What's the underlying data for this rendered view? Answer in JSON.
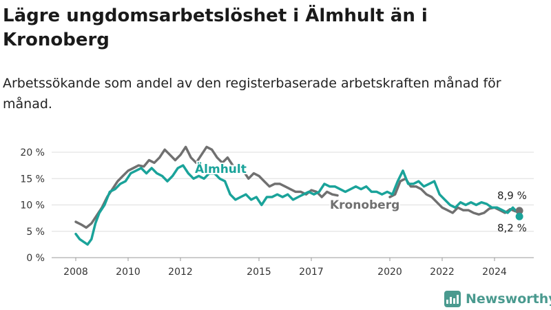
{
  "title": "Lägre ungdomsarbetslöshet i Älmhult än i Kronoberg",
  "subtitle": "Arbetssökande som andel av den registerbaserade arbetskraften månad för månad.",
  "brand": {
    "name": "Newsworthy",
    "icon": "newsworthy-logo-icon",
    "color": "#4a9a8f"
  },
  "chart_data": {
    "type": "line",
    "xlim": [
      2008,
      2025
    ],
    "ylim": [
      0,
      20
    ],
    "x_ticks": [
      {
        "value": 2008,
        "label": "2008"
      },
      {
        "value": 2010,
        "label": "2010"
      },
      {
        "value": 2012,
        "label": "2012"
      },
      {
        "value": 2015,
        "label": "2015"
      },
      {
        "value": 2017,
        "label": "2017"
      },
      {
        "value": 2020,
        "label": "2020"
      },
      {
        "value": 2022,
        "label": "2022"
      },
      {
        "value": 2024,
        "label": "2024"
      }
    ],
    "y_ticks": [
      {
        "value": 0,
        "label": "0 %"
      },
      {
        "value": 5,
        "label": "5 %"
      },
      {
        "value": 10,
        "label": "10 %"
      },
      {
        "value": 15,
        "label": "15 %"
      },
      {
        "value": 20,
        "label": "20 %"
      }
    ],
    "grid": true,
    "series": [
      {
        "name": "Kronoberg",
        "color": "#707070",
        "end_label": "8,9 %",
        "points": [
          [
            2008.0,
            6.8
          ],
          [
            2008.2,
            6.3
          ],
          [
            2008.4,
            5.7
          ],
          [
            2008.6,
            6.5
          ],
          [
            2008.8,
            8.0
          ],
          [
            2009.0,
            9.5
          ],
          [
            2009.2,
            11.5
          ],
          [
            2009.4,
            13.0
          ],
          [
            2009.6,
            14.5
          ],
          [
            2009.8,
            15.5
          ],
          [
            2010.0,
            16.5
          ],
          [
            2010.2,
            17.0
          ],
          [
            2010.4,
            17.5
          ],
          [
            2010.6,
            17.3
          ],
          [
            2010.8,
            18.5
          ],
          [
            2011.0,
            18.0
          ],
          [
            2011.2,
            19.0
          ],
          [
            2011.4,
            20.5
          ],
          [
            2011.6,
            19.5
          ],
          [
            2011.8,
            18.5
          ],
          [
            2012.0,
            19.5
          ],
          [
            2012.2,
            21.0
          ],
          [
            2012.4,
            19.0
          ],
          [
            2012.6,
            18.0
          ],
          [
            2012.8,
            19.5
          ],
          [
            2013.0,
            21.0
          ],
          [
            2013.2,
            20.5
          ],
          [
            2013.4,
            19.0
          ],
          [
            2013.6,
            18.0
          ],
          [
            2013.8,
            19.0
          ],
          [
            2014.0,
            17.5
          ],
          [
            2014.2,
            16.5
          ],
          [
            2014.4,
            16.5
          ],
          [
            2014.6,
            15.0
          ],
          [
            2014.8,
            16.0
          ],
          [
            2015.0,
            15.5
          ],
          [
            2015.2,
            14.5
          ],
          [
            2015.4,
            13.5
          ],
          [
            2015.6,
            14.0
          ],
          [
            2015.8,
            14.0
          ],
          [
            2016.0,
            13.5
          ],
          [
            2016.2,
            13.0
          ],
          [
            2016.4,
            12.5
          ],
          [
            2016.6,
            12.5
          ],
          [
            2016.8,
            12.0
          ],
          [
            2017.0,
            12.8
          ],
          [
            2017.2,
            12.5
          ],
          [
            2017.4,
            11.5
          ],
          [
            2017.6,
            12.5
          ],
          [
            2017.8,
            12.0
          ],
          [
            2018.0,
            11.8
          ]
        ],
        "points_late": [
          [
            2020.0,
            11.5
          ],
          [
            2020.2,
            12.0
          ],
          [
            2020.4,
            14.5
          ],
          [
            2020.6,
            15.0
          ],
          [
            2020.8,
            13.5
          ],
          [
            2021.0,
            13.5
          ],
          [
            2021.2,
            13.0
          ],
          [
            2021.4,
            12.0
          ],
          [
            2021.6,
            11.5
          ],
          [
            2021.8,
            10.5
          ],
          [
            2022.0,
            9.5
          ],
          [
            2022.2,
            9.0
          ],
          [
            2022.4,
            8.5
          ],
          [
            2022.6,
            9.5
          ],
          [
            2022.8,
            9.0
          ],
          [
            2023.0,
            9.0
          ],
          [
            2023.2,
            8.5
          ],
          [
            2023.4,
            8.2
          ],
          [
            2023.6,
            8.5
          ],
          [
            2023.8,
            9.3
          ],
          [
            2024.0,
            9.5
          ],
          [
            2024.2,
            9.0
          ],
          [
            2024.4,
            8.5
          ],
          [
            2024.6,
            9.2
          ],
          [
            2024.8,
            8.8
          ],
          [
            2024.95,
            8.9
          ]
        ]
      },
      {
        "name": "Älmhult",
        "color": "#1aa39a",
        "end_label": "8,2 %",
        "points": [
          [
            2008.0,
            4.5
          ],
          [
            2008.15,
            3.5
          ],
          [
            2008.3,
            3.0
          ],
          [
            2008.45,
            2.5
          ],
          [
            2008.6,
            3.5
          ],
          [
            2008.75,
            6.5
          ],
          [
            2008.9,
            8.5
          ],
          [
            2009.1,
            10.0
          ],
          [
            2009.3,
            12.5
          ],
          [
            2009.5,
            13.0
          ],
          [
            2009.7,
            14.0
          ],
          [
            2009.9,
            14.5
          ],
          [
            2010.1,
            16.0
          ],
          [
            2010.3,
            16.5
          ],
          [
            2010.5,
            17.0
          ],
          [
            2010.7,
            16.0
          ],
          [
            2010.9,
            17.0
          ],
          [
            2011.1,
            16.0
          ],
          [
            2011.3,
            15.5
          ],
          [
            2011.5,
            14.5
          ],
          [
            2011.7,
            15.5
          ],
          [
            2011.9,
            17.0
          ],
          [
            2012.1,
            17.5
          ],
          [
            2012.3,
            16.0
          ],
          [
            2012.5,
            15.0
          ],
          [
            2012.7,
            15.5
          ],
          [
            2012.9,
            15.0
          ],
          [
            2013.1,
            16.0
          ],
          [
            2013.3,
            16.0
          ],
          [
            2013.5,
            15.0
          ],
          [
            2013.7,
            14.5
          ],
          [
            2013.9,
            12.0
          ],
          [
            2014.1,
            11.0
          ],
          [
            2014.3,
            11.5
          ],
          [
            2014.5,
            12.0
          ],
          [
            2014.7,
            11.0
          ],
          [
            2014.9,
            11.5
          ],
          [
            2015.1,
            10.0
          ],
          [
            2015.3,
            11.5
          ],
          [
            2015.5,
            11.5
          ],
          [
            2015.7,
            12.0
          ],
          [
            2015.9,
            11.5
          ],
          [
            2016.1,
            12.0
          ],
          [
            2016.3,
            11.0
          ],
          [
            2016.5,
            11.5
          ],
          [
            2016.7,
            12.0
          ],
          [
            2016.9,
            12.5
          ],
          [
            2017.1,
            12.0
          ],
          [
            2017.3,
            12.5
          ],
          [
            2017.5,
            14.0
          ],
          [
            2017.7,
            13.5
          ],
          [
            2017.9,
            13.5
          ],
          [
            2018.1,
            13.0
          ],
          [
            2018.3,
            12.5
          ],
          [
            2018.5,
            13.0
          ],
          [
            2018.7,
            13.5
          ],
          [
            2018.9,
            13.0
          ],
          [
            2019.1,
            13.5
          ],
          [
            2019.3,
            12.5
          ],
          [
            2019.5,
            12.5
          ],
          [
            2019.7,
            12.0
          ],
          [
            2019.9,
            12.5
          ],
          [
            2020.1,
            12.0
          ],
          [
            2020.3,
            14.5
          ],
          [
            2020.5,
            16.5
          ],
          [
            2020.7,
            14.0
          ],
          [
            2020.9,
            14.0
          ],
          [
            2021.1,
            14.5
          ],
          [
            2021.3,
            13.5
          ],
          [
            2021.5,
            14.0
          ],
          [
            2021.7,
            14.5
          ],
          [
            2021.9,
            12.0
          ],
          [
            2022.1,
            11.0
          ],
          [
            2022.3,
            10.0
          ],
          [
            2022.5,
            9.5
          ],
          [
            2022.7,
            10.5
          ],
          [
            2022.9,
            10.0
          ],
          [
            2023.1,
            10.5
          ],
          [
            2023.3,
            10.0
          ],
          [
            2023.5,
            10.5
          ],
          [
            2023.7,
            10.2
          ],
          [
            2023.9,
            9.5
          ],
          [
            2024.1,
            9.5
          ],
          [
            2024.3,
            9.0
          ],
          [
            2024.5,
            8.5
          ],
          [
            2024.7,
            9.5
          ],
          [
            2024.85,
            8.7
          ],
          [
            2024.95,
            8.2
          ]
        ]
      }
    ]
  }
}
